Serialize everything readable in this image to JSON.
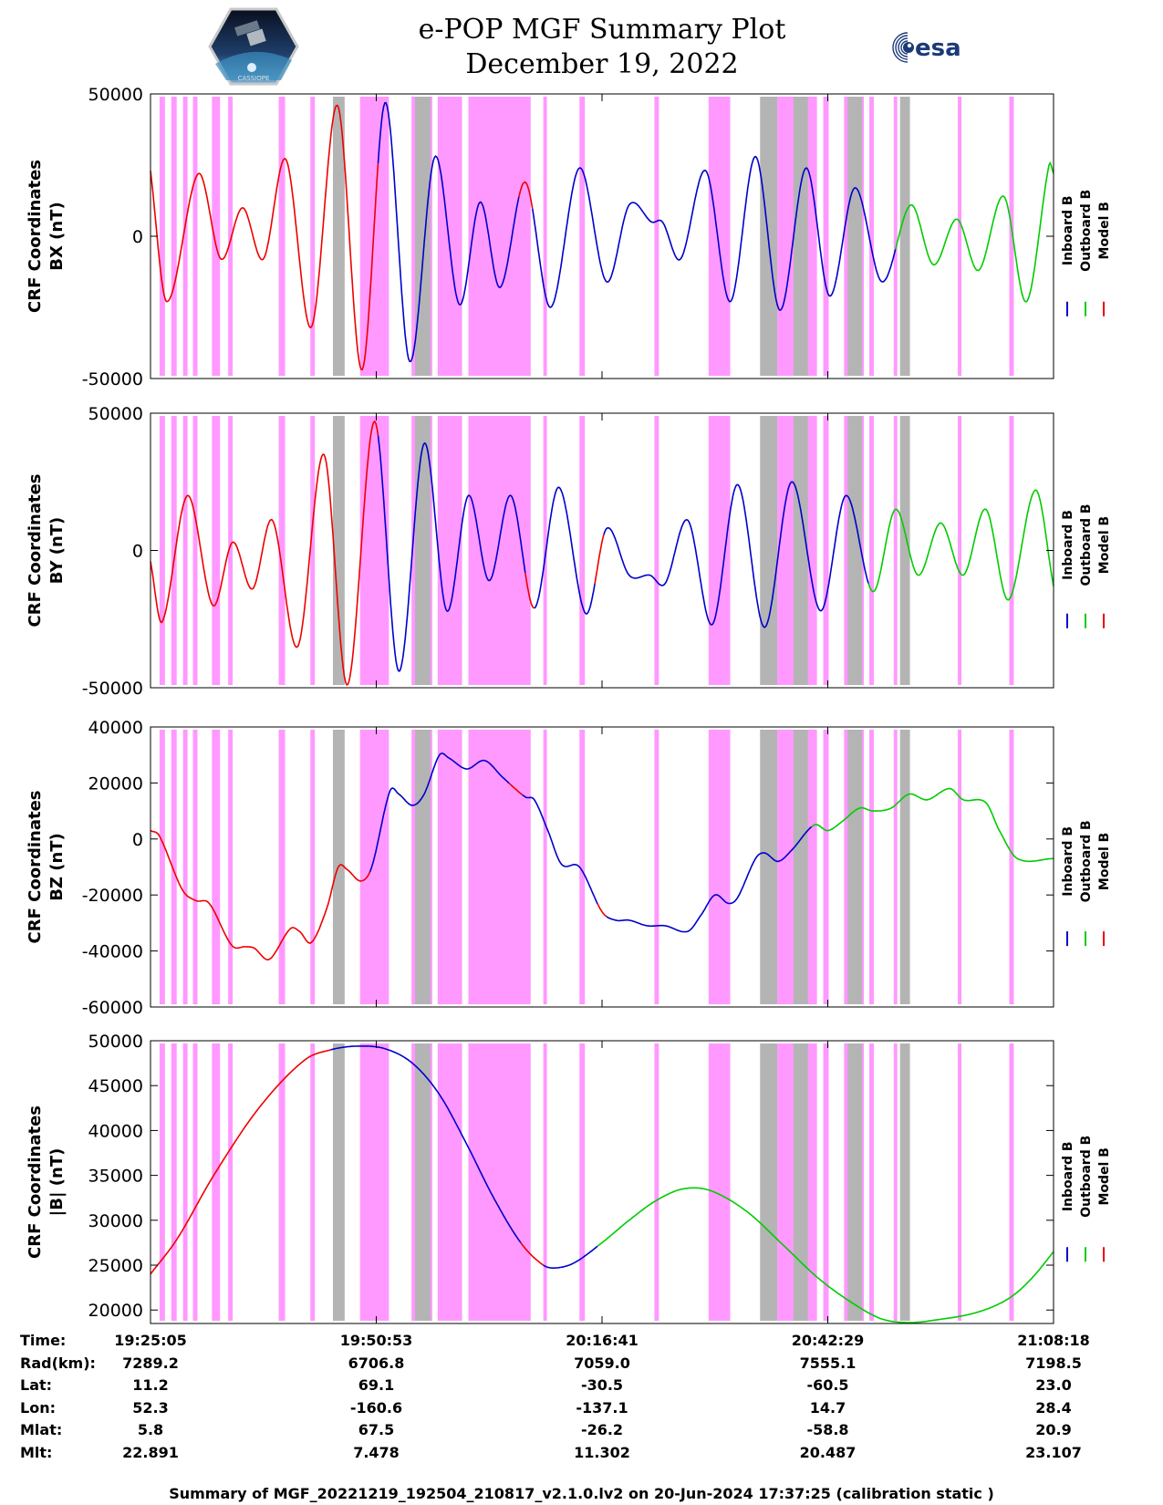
{
  "header": {
    "title_line1": "e-POP MGF Summary Plot",
    "title_line2": "December 19, 2022",
    "logo_left_text": "CASSIOPE",
    "logo_right_text": "esa"
  },
  "colors": {
    "inboard": "#0000cc",
    "outboard": "#00cc00",
    "model": "#ee0000",
    "magenta_band": "#ff99ff",
    "gray_band": "#b4b4b4"
  },
  "chart_data": [
    {
      "type": "line",
      "id": "bx",
      "ylabel": "CRF Coordinates",
      "ylabel2": "BX (nT)",
      "ylim": [
        -50000,
        50000
      ],
      "yticks": [
        -50000,
        0,
        50000
      ],
      "xlim": [
        0,
        100
      ],
      "legend": [
        "Inboard B",
        "Outboard B",
        "Model B"
      ],
      "keypoints": [
        [
          0,
          23000
        ],
        [
          1.8,
          -23000
        ],
        [
          5.3,
          22000
        ],
        [
          7.8,
          -8000
        ],
        [
          10.2,
          10000
        ],
        [
          12.5,
          -8000
        ],
        [
          15,
          27000
        ],
        [
          17.8,
          -32000
        ],
        [
          20.7,
          46000
        ],
        [
          23.4,
          -47000
        ],
        [
          26,
          47000
        ],
        [
          28.7,
          -44000
        ],
        [
          31.5,
          28000
        ],
        [
          34.2,
          -24000
        ],
        [
          36.5,
          12000
        ],
        [
          38.7,
          -18000
        ],
        [
          41.5,
          19000
        ],
        [
          44.3,
          -25000
        ],
        [
          47.5,
          24000
        ],
        [
          50.5,
          -16000
        ],
        [
          53,
          11000
        ],
        [
          55.5,
          5000
        ],
        [
          56.7,
          5000
        ],
        [
          58.7,
          -8000
        ],
        [
          61.5,
          23000
        ],
        [
          64.2,
          -23000
        ],
        [
          67,
          28000
        ],
        [
          69.7,
          -26000
        ],
        [
          72.6,
          24000
        ],
        [
          75.2,
          -21000
        ],
        [
          78,
          17000
        ],
        [
          81,
          -16000
        ],
        [
          84.2,
          11000
        ],
        [
          86.7,
          -10000
        ],
        [
          89.3,
          6000
        ],
        [
          91.7,
          -12000
        ],
        [
          94.5,
          14000
        ],
        [
          97,
          -23000
        ],
        [
          99.5,
          25000
        ],
        [
          100,
          22000
        ]
      ],
      "segments": [
        {
          "series": "model",
          "from": 0,
          "to": 25.2
        },
        {
          "series": "inboard",
          "from": 25.2,
          "to": 40.8
        },
        {
          "series": "model",
          "from": 40.8,
          "to": 42.3
        },
        {
          "series": "inboard",
          "from": 42.3,
          "to": 82.5
        },
        {
          "series": "outboard",
          "from": 82.5,
          "to": 100
        }
      ]
    },
    {
      "type": "line",
      "id": "by",
      "ylabel": "CRF Coordinates",
      "ylabel2": "BY (nT)",
      "ylim": [
        -50000,
        50000
      ],
      "yticks": [
        -50000,
        0,
        50000
      ],
      "xlim": [
        0,
        100
      ],
      "legend": [
        "Inboard B",
        "Outboard B",
        "Model B"
      ],
      "keypoints": [
        [
          0,
          -4000
        ],
        [
          1.3,
          -26000
        ],
        [
          4.1,
          20000
        ],
        [
          6.9,
          -20000
        ],
        [
          9.1,
          3000
        ],
        [
          11.3,
          -14000
        ],
        [
          13.5,
          11000
        ],
        [
          16.3,
          -35000
        ],
        [
          19.2,
          35000
        ],
        [
          21.8,
          -49000
        ],
        [
          24.8,
          47000
        ],
        [
          27.5,
          -44000
        ],
        [
          30.3,
          39000
        ],
        [
          32.8,
          -22000
        ],
        [
          35.2,
          20000
        ],
        [
          37.5,
          -11000
        ],
        [
          39.9,
          20000
        ],
        [
          42.5,
          -21000
        ],
        [
          45.2,
          23000
        ],
        [
          48.2,
          -23000
        ],
        [
          50.5,
          8000
        ],
        [
          53,
          -9000
        ],
        [
          55.3,
          -9000
        ],
        [
          57,
          -12000
        ],
        [
          59.5,
          11000
        ],
        [
          62.2,
          -27000
        ],
        [
          65,
          24000
        ],
        [
          68,
          -28000
        ],
        [
          71,
          25000
        ],
        [
          74.2,
          -22000
        ],
        [
          77,
          20000
        ],
        [
          80,
          -15000
        ],
        [
          82.5,
          15000
        ],
        [
          85,
          -9000
        ],
        [
          87.5,
          10000
        ],
        [
          90,
          -9000
        ],
        [
          92.5,
          15000
        ],
        [
          95,
          -18000
        ],
        [
          98,
          22000
        ],
        [
          100,
          -13000
        ]
      ],
      "segments": [
        {
          "series": "model",
          "from": 0,
          "to": 25.2
        },
        {
          "series": "inboard",
          "from": 25.2,
          "to": 41.5
        },
        {
          "series": "model",
          "from": 41.5,
          "to": 42.5
        },
        {
          "series": "inboard",
          "from": 42.5,
          "to": 49.2
        },
        {
          "series": "model",
          "from": 49.2,
          "to": 50.2
        },
        {
          "series": "inboard",
          "from": 50.2,
          "to": 79.5
        },
        {
          "series": "outboard",
          "from": 79.5,
          "to": 100
        }
      ]
    },
    {
      "type": "line",
      "id": "bz",
      "ylabel": "CRF Coordinates",
      "ylabel2": "BZ (nT)",
      "ylim": [
        -60000,
        40000
      ],
      "yticks": [
        -60000,
        -40000,
        -20000,
        0,
        20000,
        40000
      ],
      "xlim": [
        0,
        100
      ],
      "legend": [
        "Inboard B",
        "Outboard B",
        "Model B"
      ],
      "keypoints": [
        [
          0,
          3000
        ],
        [
          1,
          1000
        ],
        [
          3.5,
          -18000
        ],
        [
          5,
          -22000
        ],
        [
          6.5,
          -23000
        ],
        [
          9,
          -38000
        ],
        [
          10.5,
          -38500
        ],
        [
          11.5,
          -39000
        ],
        [
          12.8,
          -43000
        ],
        [
          13.5,
          -42000
        ],
        [
          15.5,
          -32000
        ],
        [
          16.5,
          -33000
        ],
        [
          17.8,
          -37000
        ],
        [
          19.5,
          -25000
        ],
        [
          20.8,
          -10000
        ],
        [
          21.8,
          -11000
        ],
        [
          23.3,
          -15000
        ],
        [
          24.5,
          -10000
        ],
        [
          26.5,
          17000
        ],
        [
          27.5,
          16000
        ],
        [
          29,
          12000
        ],
        [
          30.3,
          16000
        ],
        [
          32,
          30000
        ],
        [
          33,
          29000
        ],
        [
          35,
          25000
        ],
        [
          37,
          28000
        ],
        [
          39,
          22000
        ],
        [
          41.5,
          15000
        ],
        [
          42.5,
          14000
        ],
        [
          44,
          3000
        ],
        [
          45.5,
          -9000
        ],
        [
          47.5,
          -10000
        ],
        [
          50,
          -26000
        ],
        [
          51.5,
          -29000
        ],
        [
          53,
          -29000
        ],
        [
          55,
          -31000
        ],
        [
          57,
          -31000
        ],
        [
          59.5,
          -33000
        ],
        [
          61,
          -27000
        ],
        [
          62.5,
          -20000
        ],
        [
          64,
          -23000
        ],
        [
          65,
          -21000
        ],
        [
          67,
          -7000
        ],
        [
          68,
          -5000
        ],
        [
          69.5,
          -8000
        ],
        [
          71,
          -4000
        ],
        [
          73.5,
          5000
        ],
        [
          75,
          3000
        ],
        [
          76.5,
          6000
        ],
        [
          78.5,
          11000
        ],
        [
          80,
          10000
        ],
        [
          82,
          11000
        ],
        [
          84,
          16000
        ],
        [
          86,
          14000
        ],
        [
          88.5,
          18000
        ],
        [
          90,
          14000
        ],
        [
          92.5,
          13000
        ],
        [
          94,
          3000
        ],
        [
          96,
          -7000
        ],
        [
          100,
          -7000
        ]
      ],
      "segments": [
        {
          "series": "model",
          "from": 0,
          "to": 24.3
        },
        {
          "series": "inboard",
          "from": 24.3,
          "to": 39.7
        },
        {
          "series": "model",
          "from": 39.7,
          "to": 41.2
        },
        {
          "series": "inboard",
          "from": 41.2,
          "to": 49.5
        },
        {
          "series": "model",
          "from": 49.5,
          "to": 50.5
        },
        {
          "series": "inboard",
          "from": 50.5,
          "to": 73.2
        },
        {
          "series": "outboard",
          "from": 73.2,
          "to": 100
        }
      ]
    },
    {
      "type": "line",
      "id": "bmag",
      "ylabel": "CRF Coordinates",
      "ylabel2": "|B| (nT)",
      "ylim": [
        18500,
        50000
      ],
      "yticks": [
        20000,
        25000,
        30000,
        35000,
        40000,
        45000,
        50000
      ],
      "xlim": [
        0,
        100
      ],
      "legend": [
        "Inboard B",
        "Outboard B",
        "Model B"
      ],
      "keypoints": [
        [
          0,
          24000
        ],
        [
          3,
          28000
        ],
        [
          7,
          35000
        ],
        [
          12,
          42500
        ],
        [
          17,
          47800
        ],
        [
          20,
          49000
        ],
        [
          23,
          49400
        ],
        [
          26,
          49100
        ],
        [
          29,
          47500
        ],
        [
          32,
          44000
        ],
        [
          35,
          38500
        ],
        [
          38,
          32500
        ],
        [
          41,
          27500
        ],
        [
          43.5,
          25000
        ],
        [
          45,
          24700
        ],
        [
          47,
          25300
        ],
        [
          50,
          27500
        ],
        [
          53,
          30000
        ],
        [
          56,
          32200
        ],
        [
          59,
          33500
        ],
        [
          62,
          33300
        ],
        [
          66,
          31000
        ],
        [
          70,
          27300
        ],
        [
          74,
          23500
        ],
        [
          78,
          20600
        ],
        [
          81,
          19000
        ],
        [
          84,
          18600
        ],
        [
          87,
          18900
        ],
        [
          91,
          19600
        ],
        [
          94,
          20700
        ],
        [
          96,
          22000
        ],
        [
          98,
          24000
        ],
        [
          100,
          26500
        ]
      ],
      "segments": [
        {
          "series": "model",
          "from": 0,
          "to": 20
        },
        {
          "series": "inboard",
          "from": 20,
          "to": 41
        },
        {
          "series": "model",
          "from": 41,
          "to": 43.5
        },
        {
          "series": "inboard",
          "from": 43.5,
          "to": 49.5
        },
        {
          "series": "outboard",
          "from": 49.5,
          "to": 100
        }
      ]
    }
  ],
  "bands": {
    "magenta": [
      [
        1,
        1.6
      ],
      [
        2.3,
        2.9
      ],
      [
        3.6,
        4.1
      ],
      [
        4.7,
        5.2
      ],
      [
        6.8,
        7.7
      ],
      [
        8.6,
        9.1
      ],
      [
        14.2,
        14.9
      ],
      [
        17.7,
        18.2
      ],
      [
        23.2,
        26.4
      ],
      [
        28.9,
        31.2
      ],
      [
        31.8,
        34.5
      ],
      [
        35.2,
        42.1
      ],
      [
        43.5,
        43.9
      ],
      [
        47.5,
        48.1
      ],
      [
        55.8,
        56.3
      ],
      [
        61.8,
        64.2
      ],
      [
        69.4,
        73.8
      ],
      [
        74.5,
        75.1
      ],
      [
        76.8,
        79
      ],
      [
        79.6,
        80.1
      ],
      [
        82.3,
        82.7
      ],
      [
        89.4,
        89.8
      ],
      [
        95.1,
        95.6
      ]
    ],
    "gray": [
      [
        20.2,
        21.5
      ],
      [
        29.3,
        31
      ],
      [
        67.5,
        69.4
      ],
      [
        71.2,
        72.8
      ],
      [
        77.2,
        78.8
      ],
      [
        83,
        84.1
      ]
    ]
  },
  "time_axis": {
    "labels": [
      "Time:",
      "Rad(km):",
      "Lat:",
      "Lon:",
      "Mlat:",
      "Mlt:"
    ],
    "tick_positions": [
      0,
      25,
      50,
      75,
      100
    ],
    "columns": [
      {
        "time": "19:25:05",
        "rad": "7289.2",
        "lat": "11.2",
        "lon": "52.3",
        "mlat": "5.8",
        "mlt": "22.891"
      },
      {
        "time": "19:50:53",
        "rad": "6706.8",
        "lat": "69.1",
        "lon": "-160.6",
        "mlat": "67.5",
        "mlt": "7.478"
      },
      {
        "time": "20:16:41",
        "rad": "7059.0",
        "lat": "-30.5",
        "lon": "-137.1",
        "mlat": "-26.2",
        "mlt": "11.302"
      },
      {
        "time": "20:42:29",
        "rad": "7555.1",
        "lat": "-60.5",
        "lon": "14.7",
        "mlat": "-58.8",
        "mlt": "20.487"
      },
      {
        "time": "21:08:18",
        "rad": "7198.5",
        "lat": "23.0",
        "lon": "28.4",
        "mlat": "20.9",
        "mlt": "23.107"
      }
    ]
  },
  "footer": "Summary of MGF_20221219_192504_210817_v2.1.0.lv2 on 20-Jun-2024 17:37:25 (calibration static )"
}
